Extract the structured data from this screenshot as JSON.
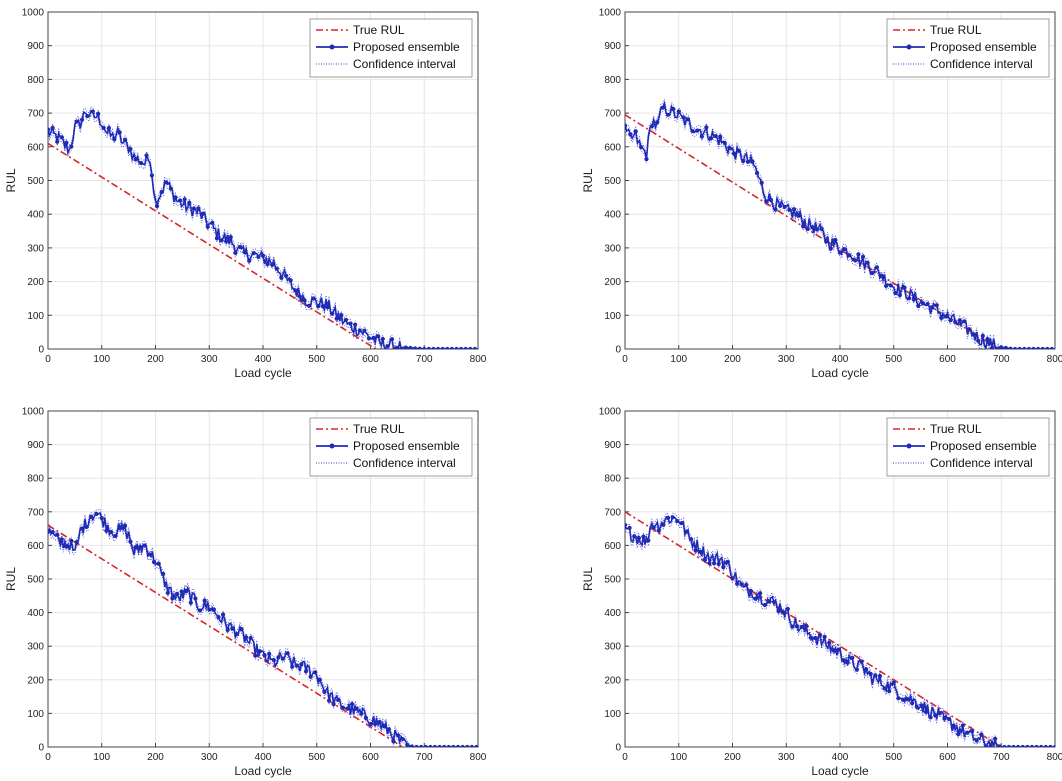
{
  "chart_data": [
    {
      "type": "line",
      "xlabel": "Load cycle",
      "ylabel": "RUL",
      "xlim": [
        0,
        800
      ],
      "ylim": [
        0,
        1000
      ],
      "xticks": [
        "0",
        "100",
        "200",
        "300",
        "400",
        "500",
        "600",
        "700",
        "800"
      ],
      "yticks": [
        "0",
        "100",
        "200",
        "300",
        "400",
        "500",
        "600",
        "700",
        "800",
        "900",
        "1000"
      ],
      "grid": true,
      "legend": "top-right",
      "series": [
        {
          "name": "True RUL",
          "style": "dash-dot",
          "color": "#d62728",
          "x": [
            0,
            610
          ],
          "y": [
            610,
            0
          ]
        },
        {
          "name": "Proposed ensemble",
          "style": "solid-marker",
          "color": "#1f2bb4",
          "x": [
            0,
            20,
            40,
            50,
            60,
            70,
            80,
            90,
            100,
            110,
            120,
            130,
            140,
            150,
            160,
            170,
            180,
            190,
            200,
            220,
            240,
            260,
            280,
            300,
            320,
            340,
            360,
            380,
            400,
            420,
            440,
            460,
            480,
            500,
            520,
            540,
            560,
            580,
            600,
            620,
            640,
            660,
            680,
            700,
            720,
            740,
            760,
            780,
            800
          ],
          "y": [
            645,
            625,
            590,
            655,
            670,
            705,
            690,
            690,
            675,
            640,
            630,
            640,
            610,
            600,
            570,
            560,
            550,
            570,
            435,
            495,
            440,
            420,
            405,
            370,
            335,
            320,
            285,
            280,
            270,
            255,
            215,
            175,
            145,
            140,
            130,
            95,
            70,
            55,
            35,
            15,
            10,
            5,
            2,
            0,
            0,
            0,
            0,
            0,
            0
          ]
        },
        {
          "name": "Confidence interval",
          "style": "dotted",
          "color": "#3a3ad6",
          "band": 12
        }
      ]
    },
    {
      "type": "line",
      "xlabel": "Load cycle",
      "ylabel": "RUL",
      "xlim": [
        0,
        800
      ],
      "ylim": [
        0,
        1000
      ],
      "xticks": [
        "0",
        "100",
        "200",
        "300",
        "400",
        "500",
        "600",
        "700",
        "800"
      ],
      "yticks": [
        "0",
        "100",
        "200",
        "300",
        "400",
        "500",
        "600",
        "700",
        "800",
        "900",
        "1000"
      ],
      "grid": true,
      "legend": "top-right",
      "series": [
        {
          "name": "True RUL",
          "style": "dash-dot",
          "color": "#d62728",
          "x": [
            0,
            695
          ],
          "y": [
            695,
            0
          ]
        },
        {
          "name": "Proposed ensemble",
          "style": "solid-marker",
          "color": "#1f2bb4",
          "x": [
            0,
            10,
            20,
            30,
            40,
            50,
            60,
            70,
            80,
            90,
            100,
            120,
            140,
            160,
            180,
            200,
            220,
            240,
            260,
            280,
            300,
            320,
            340,
            360,
            380,
            400,
            420,
            440,
            460,
            480,
            500,
            520,
            540,
            560,
            580,
            600,
            620,
            640,
            660,
            680,
            700,
            720,
            740,
            760,
            780,
            800
          ],
          "y": [
            645,
            625,
            630,
            595,
            580,
            680,
            660,
            715,
            710,
            700,
            690,
            665,
            650,
            635,
            615,
            585,
            570,
            545,
            460,
            430,
            410,
            400,
            370,
            355,
            320,
            300,
            285,
            260,
            240,
            215,
            185,
            170,
            150,
            130,
            115,
            95,
            75,
            55,
            30,
            15,
            5,
            0,
            0,
            0,
            0,
            0
          ]
        },
        {
          "name": "Confidence interval",
          "style": "dotted",
          "color": "#3a3ad6",
          "band": 12
        }
      ]
    },
    {
      "type": "line",
      "xlabel": "Load cycle",
      "ylabel": "RUL",
      "xlim": [
        0,
        800
      ],
      "ylim": [
        0,
        1000
      ],
      "xticks": [
        "0",
        "100",
        "200",
        "300",
        "400",
        "500",
        "600",
        "700",
        "800"
      ],
      "yticks": [
        "0",
        "100",
        "200",
        "300",
        "400",
        "500",
        "600",
        "700",
        "800",
        "900",
        "1000"
      ],
      "grid": true,
      "legend": "top-right",
      "series": [
        {
          "name": "True RUL",
          "style": "dash-dot",
          "color": "#d62728",
          "x": [
            0,
            660
          ],
          "y": [
            660,
            0
          ]
        },
        {
          "name": "Proposed ensemble",
          "style": "solid-marker",
          "color": "#1f2bb4",
          "x": [
            0,
            20,
            40,
            50,
            60,
            80,
            90,
            100,
            120,
            140,
            150,
            160,
            180,
            200,
            220,
            240,
            260,
            280,
            300,
            320,
            340,
            360,
            380,
            400,
            420,
            440,
            460,
            480,
            500,
            520,
            540,
            560,
            580,
            600,
            620,
            640,
            660,
            680,
            700,
            720,
            740,
            760,
            780,
            800
          ],
          "y": [
            645,
            610,
            605,
            575,
            640,
            690,
            695,
            680,
            640,
            650,
            630,
            580,
            600,
            555,
            480,
            440,
            460,
            420,
            420,
            385,
            355,
            335,
            300,
            270,
            250,
            270,
            245,
            235,
            215,
            160,
            130,
            115,
            100,
            85,
            65,
            40,
            10,
            0,
            0,
            0,
            0,
            0,
            0,
            0
          ]
        },
        {
          "name": "Confidence interval",
          "style": "dotted",
          "color": "#3a3ad6",
          "band": 12
        }
      ]
    },
    {
      "type": "line",
      "xlabel": "Load cycle",
      "ylabel": "RUL",
      "xlim": [
        0,
        800
      ],
      "ylim": [
        0,
        1000
      ],
      "xticks": [
        "0",
        "100",
        "200",
        "300",
        "400",
        "500",
        "600",
        "700",
        "800"
      ],
      "yticks": [
        "0",
        "100",
        "200",
        "300",
        "400",
        "500",
        "600",
        "700",
        "800",
        "900",
        "1000"
      ],
      "grid": true,
      "legend": "top-right",
      "series": [
        {
          "name": "True RUL",
          "style": "dash-dot",
          "color": "#d62728",
          "x": [
            0,
            700
          ],
          "y": [
            700,
            0
          ]
        },
        {
          "name": "Proposed ensemble",
          "style": "solid-marker",
          "color": "#1f2bb4",
          "x": [
            0,
            20,
            40,
            50,
            60,
            80,
            100,
            120,
            140,
            160,
            180,
            200,
            220,
            240,
            260,
            280,
            300,
            320,
            340,
            360,
            380,
            400,
            420,
            440,
            460,
            480,
            500,
            520,
            540,
            560,
            580,
            600,
            620,
            640,
            660,
            680,
            700,
            720,
            740,
            760,
            780,
            800
          ],
          "y": [
            645,
            625,
            610,
            670,
            660,
            680,
            680,
            620,
            590,
            560,
            560,
            520,
            470,
            460,
            440,
            430,
            400,
            360,
            340,
            320,
            300,
            280,
            250,
            240,
            205,
            190,
            175,
            150,
            135,
            115,
            95,
            75,
            55,
            35,
            20,
            10,
            0,
            0,
            0,
            0,
            0,
            0
          ]
        },
        {
          "name": "Confidence interval",
          "style": "dotted",
          "color": "#3a3ad6",
          "band": 12
        }
      ]
    }
  ]
}
